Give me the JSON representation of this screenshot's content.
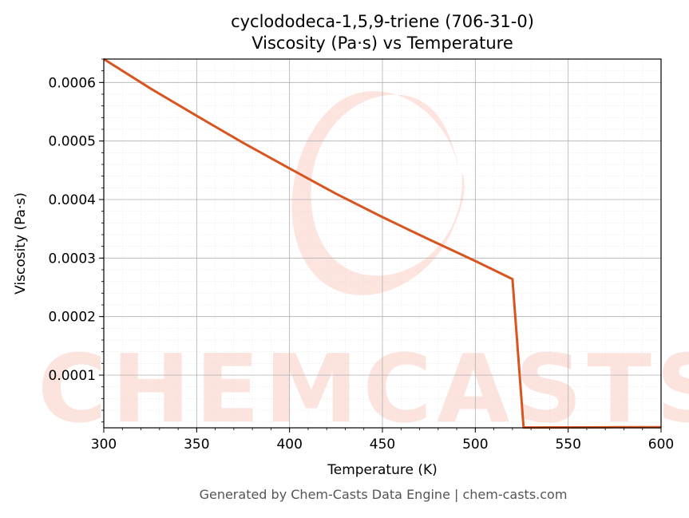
{
  "page": {
    "title_line1": "cyclododeca-1,5,9-triene (706-31-0)",
    "title_line2": "Viscosity (Pa·s) vs Temperature",
    "footer": "Generated by Chem-Casts Data Engine | chem-casts.com",
    "watermark_text": "CHEMCASTS"
  },
  "chart_data": {
    "type": "line",
    "title": "cyclododeca-1,5,9-triene (706-31-0) Viscosity (Pa·s) vs Temperature",
    "xlabel": "Temperature (K)",
    "ylabel": "Viscosity (Pa·s)",
    "xlim": [
      300,
      600
    ],
    "ylim": [
      1e-05,
      0.00064
    ],
    "x_ticks": [
      300,
      350,
      400,
      450,
      500,
      550,
      600
    ],
    "x_tick_labels": [
      "300",
      "350",
      "400",
      "450",
      "500",
      "550",
      "600"
    ],
    "y_ticks": [
      0.0001,
      0.0002,
      0.0003,
      0.0004,
      0.0005,
      0.0006
    ],
    "y_tick_labels": [
      "0.0001",
      "0.0002",
      "0.0003",
      "0.0004",
      "0.0005",
      "0.0006"
    ],
    "grid": true,
    "line_color": "#d9541e",
    "series": [
      {
        "x": [
          300,
          325,
          350,
          375,
          400,
          425,
          450,
          475,
          500,
          520,
          526,
          550,
          575,
          600
        ],
        "y": [
          0.00064,
          0.00059,
          0.000543,
          0.000497,
          0.000453,
          0.00041,
          0.00037,
          0.000332,
          0.000295,
          0.000264,
          1.05e-05,
          1.07e-05,
          1.09e-05,
          1.11e-05
        ]
      }
    ]
  }
}
